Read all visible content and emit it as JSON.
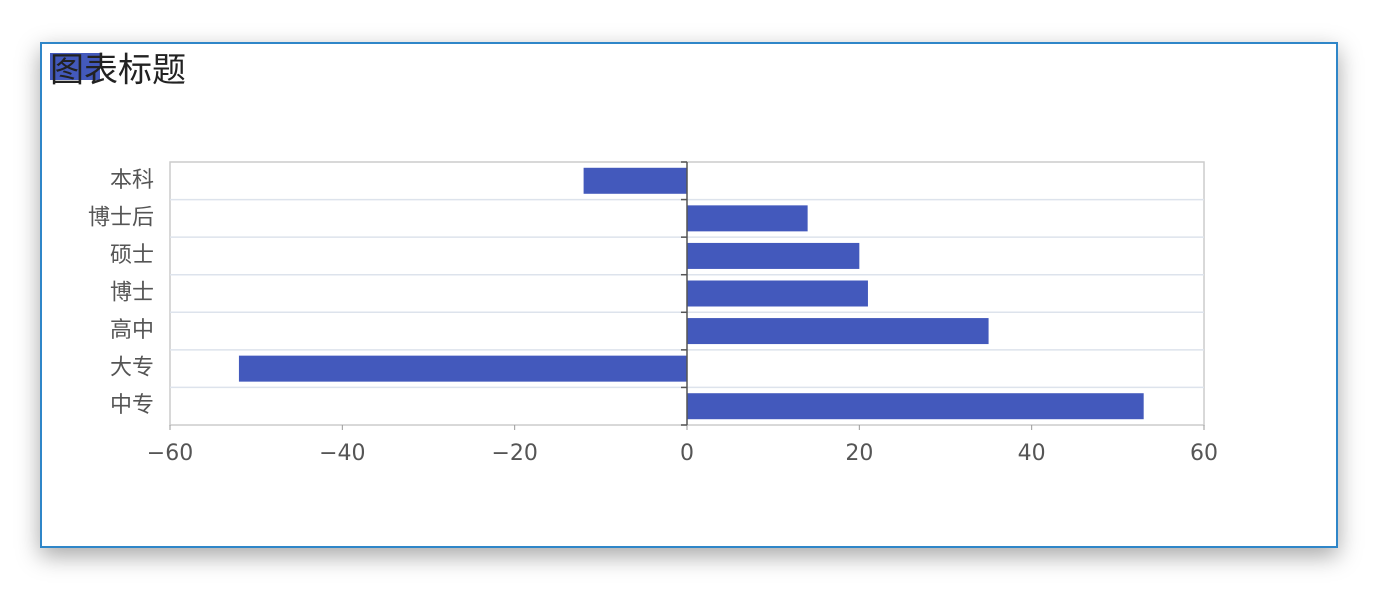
{
  "chart_data": {
    "type": "bar",
    "orientation": "horizontal",
    "title": "图表标题",
    "categories": [
      "本科",
      "博士后",
      "硕士",
      "博士",
      "高中",
      "大专",
      "中专"
    ],
    "values": [
      -12,
      14,
      20,
      21,
      35,
      -52,
      53
    ],
    "color": "#4359bc",
    "xlim": [
      -60,
      60
    ],
    "xticks": [
      {
        "value": -60,
        "label": "−60"
      },
      {
        "value": -40,
        "label": "−40"
      },
      {
        "value": -20,
        "label": "−20"
      },
      0,
      20,
      40,
      60
    ],
    "grid": true
  }
}
